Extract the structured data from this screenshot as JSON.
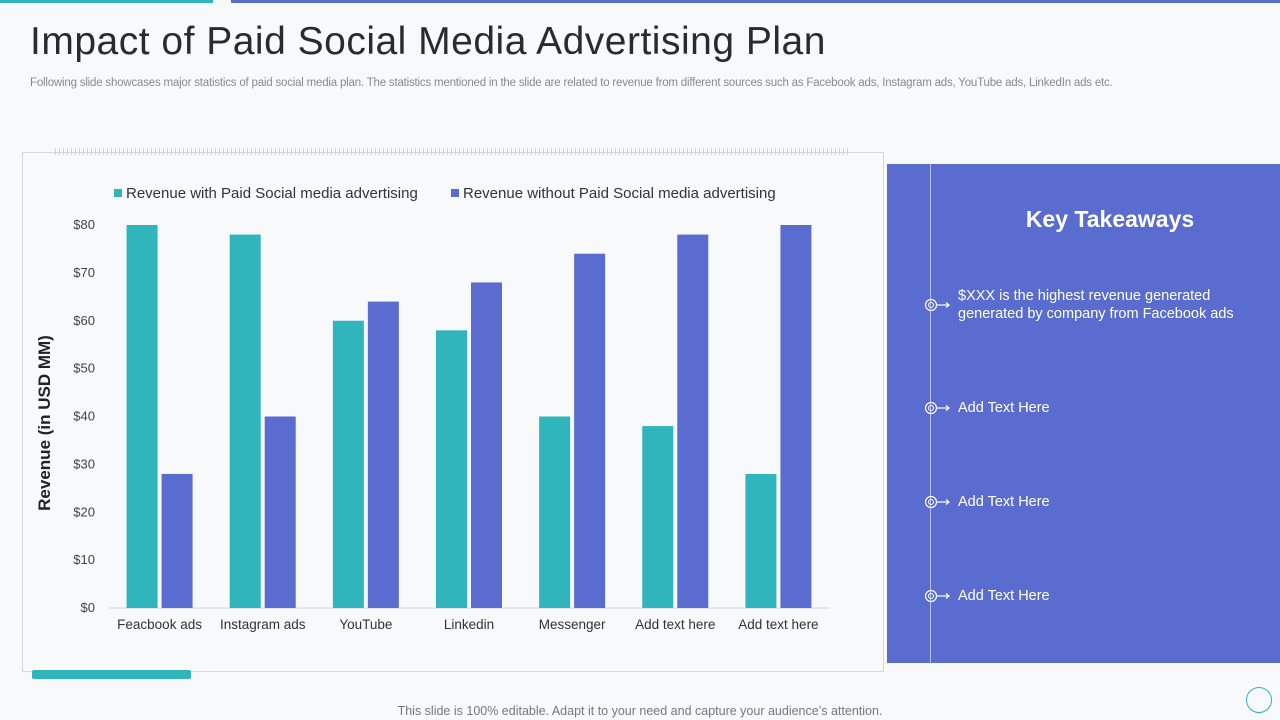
{
  "title": "Impact of Paid Social Media Advertising Plan",
  "subtitle": "Following slide showcases major statistics of paid social media plan. The statistics mentioned in the slide are related to revenue from different sources such as Facebook ads, Instagram ads, YouTube ads, LinkedIn ads etc.",
  "colors": {
    "teal": "#2fb5bb",
    "blue": "#5a6ccf"
  },
  "chart_data": {
    "type": "bar",
    "categories": [
      "Feacbook ads",
      "Instagram ads",
      "YouTube",
      "Linkedin",
      "Messenger",
      "Add text here",
      "Add text here"
    ],
    "series": [
      {
        "name": "Revenue with Paid Social media advertising",
        "color": "#2fb5bb",
        "values": [
          80,
          78,
          60,
          58,
          40,
          38,
          28
        ]
      },
      {
        "name": "Revenue without Paid Social media advertising",
        "color": "#5a6ccf",
        "values": [
          28,
          40,
          64,
          68,
          74,
          78,
          80
        ]
      }
    ],
    "yticks": [
      "$0",
      "$10",
      "$20",
      "$30",
      "$40",
      "$50",
      "$60",
      "$70",
      "$80"
    ],
    "ylabel": "Revenue (in USD MM)",
    "ylim": [
      0,
      80
    ],
    "grid": false,
    "legend_position": "top"
  },
  "panel": {
    "title": "Key Takeaways",
    "items": [
      "$XXX  is the highest revenue generated generated by company from Facebook ads",
      "Add Text Here",
      "Add Text Here",
      "Add Text Here"
    ]
  },
  "footer": "This slide is 100% editable. Adapt it to your need and capture your audience’s attention."
}
